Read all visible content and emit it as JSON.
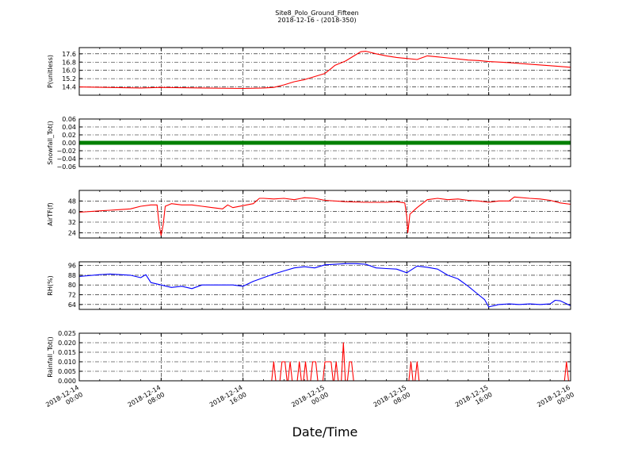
{
  "title": {
    "line1": "Site8_Polo_Ground_Fifteen",
    "line2": "2018-12-16 - (2018-350)"
  },
  "chart_data": {
    "type": "line",
    "xlabel": "Date/Time",
    "x_range": [
      "2018-12-14 00:00",
      "2018-12-16 00:00"
    ],
    "x_ticks": [
      {
        "t": 0,
        "label": [
          "2018-12-14",
          "00:00"
        ]
      },
      {
        "t": 8,
        "label": [
          "2018-12-14",
          "08:00"
        ]
      },
      {
        "t": 16,
        "label": [
          "2018-12-14",
          "16:00"
        ]
      },
      {
        "t": 24,
        "label": [
          "2018-12-15",
          "00:00"
        ]
      },
      {
        "t": 32,
        "label": [
          "2018-12-15",
          "08:00"
        ]
      },
      {
        "t": 40,
        "label": [
          "2018-12-15",
          "16:00"
        ]
      },
      {
        "t": 48,
        "label": [
          "2018-12-16",
          "00:00"
        ]
      }
    ],
    "grid": true,
    "panels": [
      {
        "ylabel": "P(unitless)",
        "color": "#ff0000",
        "ylim": [
          13.6,
          18.2
        ],
        "yticks": [
          14.4,
          15.2,
          16.0,
          16.8,
          17.6
        ],
        "ytick_labels": [
          "14.4",
          "15.2",
          "16.0",
          "16.8",
          "17.6"
        ],
        "series": [
          [
            0,
            14.4
          ],
          [
            6,
            14.3
          ],
          [
            8,
            14.35
          ],
          [
            12,
            14.3
          ],
          [
            16,
            14.25
          ],
          [
            18,
            14.3
          ],
          [
            19,
            14.35
          ],
          [
            20,
            14.6
          ],
          [
            21,
            14.9
          ],
          [
            22,
            15.1
          ],
          [
            23,
            15.4
          ],
          [
            24,
            15.7
          ],
          [
            24.5,
            16.1
          ],
          [
            25,
            16.5
          ],
          [
            26,
            16.9
          ],
          [
            27,
            17.5
          ],
          [
            27.5,
            17.8
          ],
          [
            28,
            17.85
          ],
          [
            29,
            17.6
          ],
          [
            30,
            17.4
          ],
          [
            31,
            17.25
          ],
          [
            32,
            17.15
          ],
          [
            33,
            17.05
          ],
          [
            34,
            17.4
          ],
          [
            35,
            17.3
          ],
          [
            36,
            17.2
          ],
          [
            37,
            17.1
          ],
          [
            38,
            17.0
          ],
          [
            39,
            16.95
          ],
          [
            40,
            16.85
          ],
          [
            42,
            16.75
          ],
          [
            44,
            16.6
          ],
          [
            46,
            16.45
          ],
          [
            48,
            16.3
          ]
        ]
      },
      {
        "ylabel": "Snowfall_Tot()",
        "color": "#008000",
        "ylim": [
          -0.06,
          0.06
        ],
        "yticks": [
          -0.06,
          -0.04,
          -0.02,
          0.0,
          0.02,
          0.04,
          0.06
        ],
        "ytick_labels": [
          "−0.06",
          "−0.04",
          "−0.02",
          "0.00",
          "0.02",
          "0.04",
          "0.06"
        ],
        "series": [
          [
            0,
            0
          ],
          [
            48,
            0
          ]
        ],
        "thick": true
      },
      {
        "ylabel": "AirTF(f)",
        "color": "#ff0000",
        "ylim": [
          20,
          56
        ],
        "yticks": [
          24,
          32,
          40,
          48
        ],
        "ytick_labels": [
          "24",
          "32",
          "40",
          "48"
        ],
        "series": [
          [
            0,
            39.5
          ],
          [
            2,
            40.5
          ],
          [
            3,
            41
          ],
          [
            4,
            41.5
          ],
          [
            5,
            42
          ],
          [
            6,
            44
          ],
          [
            7,
            45
          ],
          [
            7.6,
            45
          ],
          [
            7.8,
            30
          ],
          [
            8,
            22
          ],
          [
            8.2,
            30
          ],
          [
            8.4,
            44
          ],
          [
            9,
            46
          ],
          [
            10,
            45
          ],
          [
            11,
            45
          ],
          [
            12,
            44
          ],
          [
            13,
            43
          ],
          [
            14,
            42
          ],
          [
            14.5,
            45
          ],
          [
            15,
            43
          ],
          [
            16,
            44.5
          ],
          [
            17,
            46
          ],
          [
            17.6,
            50
          ],
          [
            18,
            50
          ],
          [
            19,
            49.5
          ],
          [
            20,
            50
          ],
          [
            21,
            49
          ],
          [
            22,
            50.5
          ],
          [
            23,
            50
          ],
          [
            24,
            48.5
          ],
          [
            26,
            47.5
          ],
          [
            28,
            47
          ],
          [
            30,
            47
          ],
          [
            31,
            47.5
          ],
          [
            31.8,
            46.5
          ],
          [
            32,
            36
          ],
          [
            32.1,
            24
          ],
          [
            32.3,
            38
          ],
          [
            33,
            43
          ],
          [
            34,
            49
          ],
          [
            35,
            50
          ],
          [
            36,
            49
          ],
          [
            37,
            49.5
          ],
          [
            38,
            48.5
          ],
          [
            39,
            48
          ],
          [
            40,
            47
          ],
          [
            41,
            48
          ],
          [
            42,
            48
          ],
          [
            42.5,
            51
          ],
          [
            44,
            50
          ],
          [
            45,
            49.5
          ],
          [
            46,
            48.5
          ],
          [
            47,
            46.5
          ],
          [
            48,
            45.5
          ]
        ]
      },
      {
        "ylabel": "RH(%)",
        "color": "#0000ff",
        "ylim": [
          60,
          99
        ],
        "yticks": [
          64,
          72,
          80,
          88,
          96
        ],
        "ytick_labels": [
          "64",
          "72",
          "80",
          "88",
          "96"
        ],
        "series": [
          [
            0,
            87
          ],
          [
            2,
            88.5
          ],
          [
            3,
            89
          ],
          [
            4,
            88.5
          ],
          [
            5,
            88
          ],
          [
            6,
            86
          ],
          [
            6.5,
            88.5
          ],
          [
            7,
            82
          ],
          [
            8,
            80
          ],
          [
            9,
            78
          ],
          [
            10,
            79
          ],
          [
            11,
            77
          ],
          [
            12,
            80
          ],
          [
            13,
            80
          ],
          [
            14,
            80
          ],
          [
            15,
            80
          ],
          [
            16,
            79
          ],
          [
            17,
            83
          ],
          [
            18,
            86
          ],
          [
            19,
            89
          ],
          [
            20,
            91.5
          ],
          [
            21,
            94
          ],
          [
            22,
            95
          ],
          [
            23,
            94
          ],
          [
            24,
            96.5
          ],
          [
            25,
            97
          ],
          [
            26,
            97.5
          ],
          [
            27,
            97.5
          ],
          [
            28,
            97
          ],
          [
            29,
            94
          ],
          [
            30,
            93.5
          ],
          [
            31,
            93
          ],
          [
            32,
            90
          ],
          [
            33,
            95.5
          ],
          [
            34,
            94.5
          ],
          [
            35,
            93
          ],
          [
            36,
            88
          ],
          [
            37,
            85
          ],
          [
            38,
            79
          ],
          [
            39,
            72
          ],
          [
            39.6,
            68
          ],
          [
            40,
            62
          ],
          [
            41,
            64
          ],
          [
            42,
            64.5
          ],
          [
            43,
            64
          ],
          [
            44,
            64.5
          ],
          [
            45,
            64
          ],
          [
            46,
            64.5
          ],
          [
            46.5,
            67.5
          ],
          [
            47,
            67
          ],
          [
            48,
            63
          ]
        ]
      },
      {
        "ylabel": "Rainfall_Tot()",
        "color": "#ff0000",
        "ylim": [
          0,
          0.025
        ],
        "yticks": [
          0.0,
          0.005,
          0.01,
          0.015,
          0.02,
          0.025
        ],
        "ytick_labels": [
          "0.000",
          "0.005",
          "0.010",
          "0.015",
          "0.020",
          "0.025"
        ],
        "series": [
          [
            0,
            0
          ],
          [
            18.8,
            0
          ],
          [
            19,
            0.01
          ],
          [
            19.2,
            0
          ],
          [
            19.6,
            0
          ],
          [
            19.8,
            0.01
          ],
          [
            20.1,
            0.01
          ],
          [
            20.3,
            0
          ],
          [
            20.4,
            0
          ],
          [
            20.6,
            0.01
          ],
          [
            20.8,
            0
          ],
          [
            21.3,
            0
          ],
          [
            21.5,
            0.01
          ],
          [
            21.7,
            0
          ],
          [
            21.9,
            0
          ],
          [
            22.1,
            0.01
          ],
          [
            22.3,
            0
          ],
          [
            22.6,
            0
          ],
          [
            22.8,
            0.01
          ],
          [
            23.1,
            0.01
          ],
          [
            23.3,
            0
          ],
          [
            23.8,
            0
          ],
          [
            24,
            0.01
          ],
          [
            24.6,
            0.01
          ],
          [
            24.8,
            0
          ],
          [
            24.9,
            0
          ],
          [
            25.1,
            0.01
          ],
          [
            25.3,
            0
          ],
          [
            25.6,
            0
          ],
          [
            25.8,
            0.02
          ],
          [
            26,
            0
          ],
          [
            26.2,
            0
          ],
          [
            26.4,
            0.01
          ],
          [
            26.6,
            0.01
          ],
          [
            26.8,
            0
          ],
          [
            32.2,
            0
          ],
          [
            32.4,
            0.01
          ],
          [
            32.6,
            0
          ],
          [
            32.8,
            0
          ],
          [
            33,
            0.01
          ],
          [
            33.2,
            0
          ],
          [
            47.4,
            0
          ],
          [
            47.6,
            0.01
          ],
          [
            47.8,
            0
          ],
          [
            48,
            0
          ]
        ]
      }
    ]
  }
}
